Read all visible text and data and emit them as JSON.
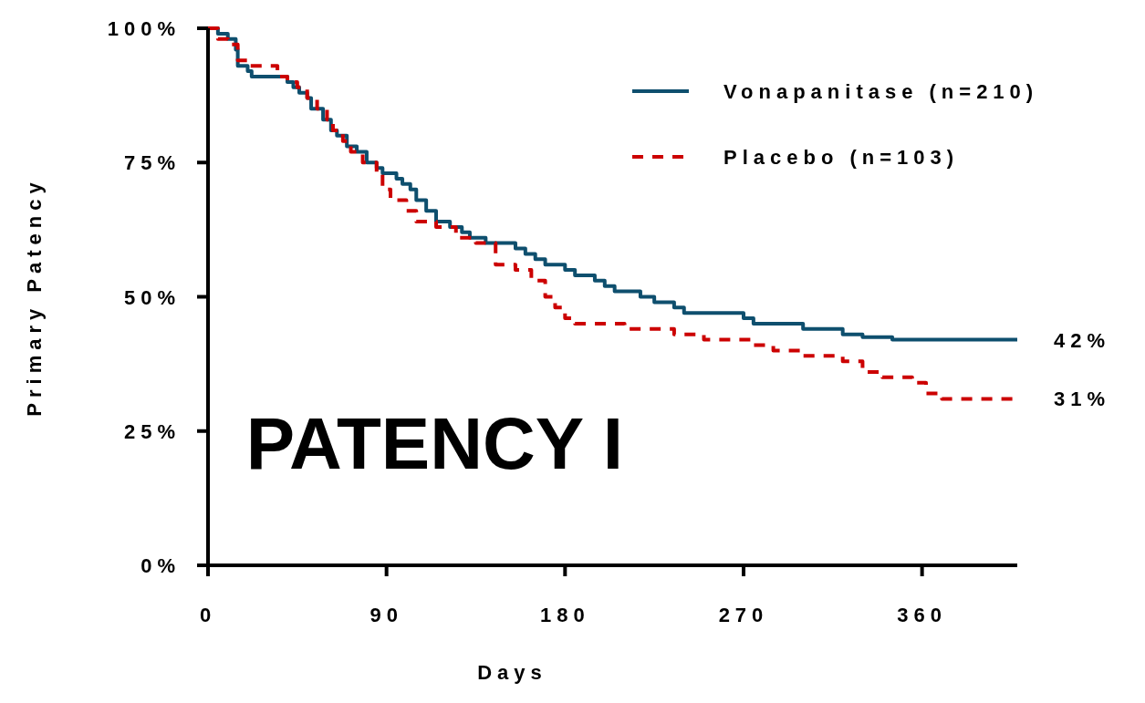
{
  "chart_data": {
    "type": "step",
    "xlabel": "Days",
    "ylabel": "Primary Patency",
    "xlim": [
      0,
      408
    ],
    "xticks": [
      0,
      90,
      180,
      270,
      360
    ],
    "ylim": [
      0,
      100
    ],
    "yticks": [
      {
        "value": 0,
        "label": "0%"
      },
      {
        "value": 25,
        "label": "25%"
      },
      {
        "value": 50,
        "label": "50%"
      },
      {
        "value": 75,
        "label": "75%"
      },
      {
        "value": 100,
        "label": "100%"
      }
    ],
    "grid": false,
    "legend": "top right",
    "series": [
      {
        "name": "Vonapanitase (n=210)",
        "color": "#0e4f6e",
        "line_style": "solid",
        "x": [
          0,
          5,
          10,
          14,
          15,
          20,
          22,
          40,
          43,
          46,
          50,
          52,
          58,
          62,
          65,
          70,
          75,
          80,
          85,
          88,
          95,
          98,
          102,
          105,
          110,
          115,
          122,
          128,
          132,
          140,
          155,
          160,
          165,
          170,
          180,
          185,
          195,
          200,
          205,
          218,
          225,
          235,
          240,
          260,
          270,
          275,
          300,
          320,
          330,
          345,
          408
        ],
        "values": [
          100,
          99,
          98,
          96,
          93,
          92,
          91,
          90,
          89,
          88,
          87,
          85,
          83,
          81,
          80,
          78,
          77,
          75,
          74,
          73,
          72,
          71,
          70,
          68,
          66,
          64,
          63,
          62,
          61,
          60,
          59,
          58,
          57,
          56,
          55,
          54,
          53,
          52,
          51,
          50,
          49,
          48,
          47,
          47,
          46,
          45,
          44,
          43,
          42.5,
          42,
          42
        ]
      },
      {
        "name": "Placebo (n=103)",
        "color": "#cc0000",
        "line_style": "dashed",
        "x": [
          0,
          5,
          10,
          15,
          20,
          30,
          35,
          40,
          45,
          50,
          55,
          60,
          63,
          68,
          72,
          78,
          85,
          88,
          92,
          100,
          105,
          115,
          125,
          135,
          145,
          155,
          163,
          170,
          175,
          180,
          185,
          200,
          210,
          235,
          250,
          275,
          285,
          300,
          320,
          330,
          340,
          355,
          362,
          370,
          408
        ],
        "values": [
          100,
          98,
          97,
          94,
          93,
          93,
          91,
          90,
          89,
          87,
          85,
          83,
          81,
          79,
          77,
          75,
          73,
          70,
          68,
          66,
          64,
          63,
          61,
          60,
          56,
          55,
          53,
          50,
          48,
          46,
          45,
          45,
          44,
          43,
          42,
          41,
          40,
          39,
          38,
          36,
          35,
          34,
          32,
          31,
          31
        ]
      }
    ],
    "annotations": [
      {
        "text": "42%",
        "x": 408,
        "y": 42
      },
      {
        "text": "31%",
        "x": 408,
        "y": 31
      },
      "PATENCY I"
    ]
  }
}
